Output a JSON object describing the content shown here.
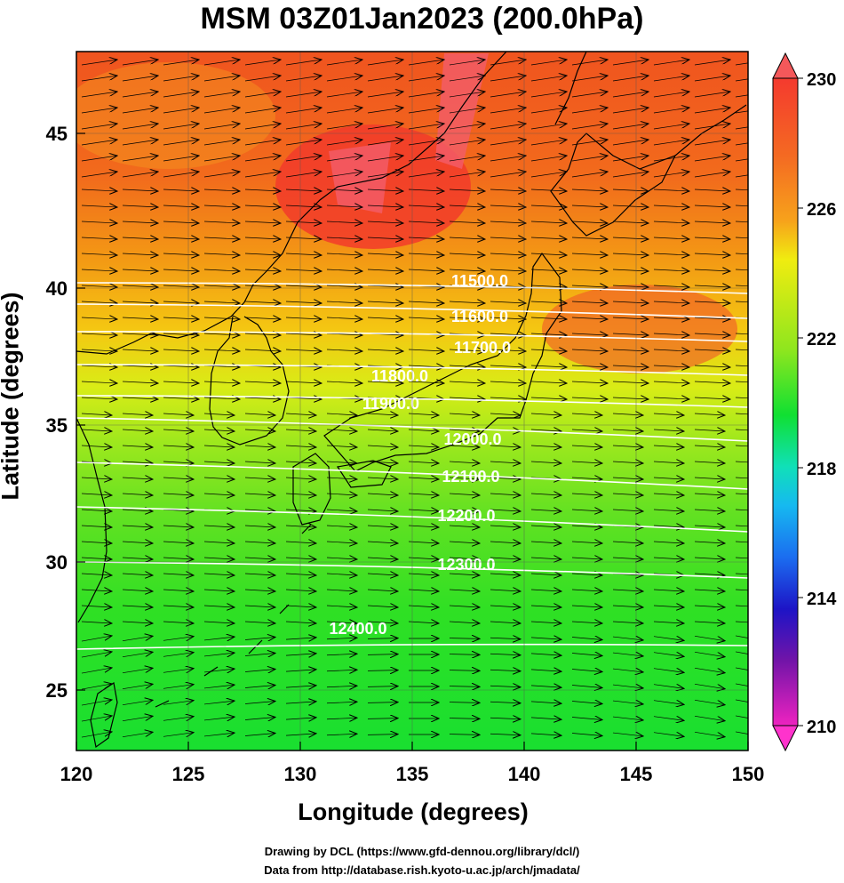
{
  "title": "MSM 03Z01Jan2023 (200.0hPa)",
  "axes": {
    "xlabel": "Longitude (degrees)",
    "ylabel": "Latitude  (degrees)",
    "x_ticks": [
      "120",
      "125",
      "130",
      "135",
      "140",
      "145",
      "150"
    ],
    "y_ticks": [
      "25",
      "30",
      "35",
      "40",
      "45"
    ]
  },
  "colorbar": {
    "labels": [
      "230",
      "226",
      "222",
      "218",
      "214",
      "210"
    ],
    "colors": [
      "#f43a2e",
      "#f7951b",
      "#f0ec10",
      "#4ce322",
      "#10e0b8",
      "#1b6df0",
      "#1d14c6",
      "#ee23c0"
    ]
  },
  "contours": [
    {
      "label": "11500.0"
    },
    {
      "label": "11600.0"
    },
    {
      "label": "11700.0"
    },
    {
      "label": "11800.0"
    },
    {
      "label": "11900.0"
    },
    {
      "label": "12000.0"
    },
    {
      "label": "12100.0"
    },
    {
      "label": "12200.0"
    },
    {
      "label": "12300.0"
    },
    {
      "label": "12400.0"
    }
  ],
  "credits": {
    "line1": "Drawing by DCL (https://www.gfd-dennou.org/library/dcl/)",
    "line2": "Data from http://database.rish.kyoto-u.ac.jp/arch/jmadata/"
  }
}
